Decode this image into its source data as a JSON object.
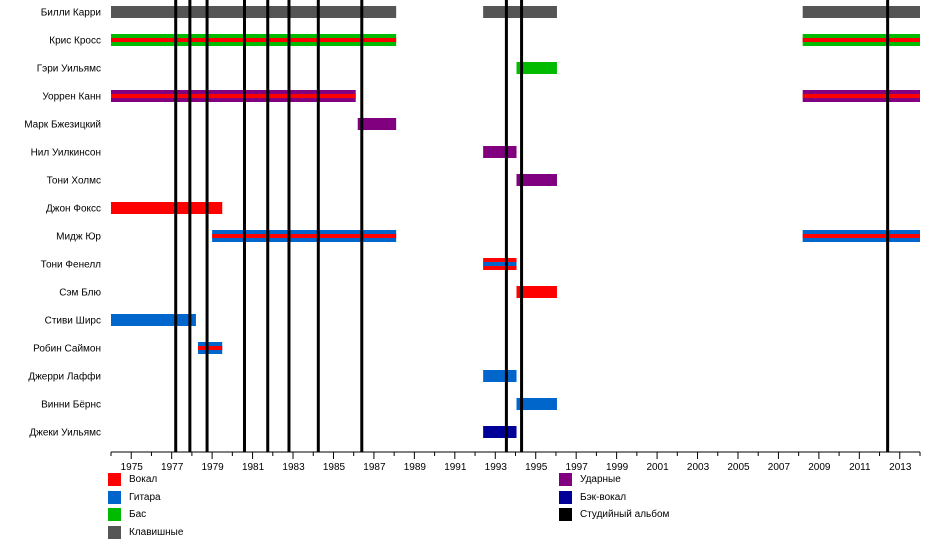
{
  "chart_data": {
    "type": "timeline",
    "x_range": [
      1974,
      2014
    ],
    "x_ticks": [
      1975,
      1977,
      1979,
      1981,
      1983,
      1985,
      1987,
      1989,
      1991,
      1993,
      1995,
      1997,
      1999,
      2001,
      2003,
      2005,
      2007,
      2009,
      2011,
      2013
    ],
    "roles": [
      {
        "key": "vocals",
        "name": "Вокал",
        "color": "#ff0000"
      },
      {
        "key": "guitar",
        "name": "Гитара",
        "color": "#0066cc"
      },
      {
        "key": "bass",
        "name": "Бас",
        "color": "#00bb00"
      },
      {
        "key": "keyboards",
        "name": "Клавишные",
        "color": "#555555"
      },
      {
        "key": "drums",
        "name": "Ударные",
        "color": "#800080"
      },
      {
        "key": "backing",
        "name": "Бэк-вокал",
        "color": "#000099"
      },
      {
        "key": "album",
        "name": "Студийный альбом",
        "color": "#000000"
      }
    ],
    "members": [
      {
        "name": "Билли Карри",
        "periods": [
          {
            "start": 1974,
            "end": 1988.1,
            "roles": [
              "keyboards"
            ]
          },
          {
            "start": 1992.4,
            "end": 1996.05,
            "roles": [
              "keyboards"
            ]
          },
          {
            "start": 2008.2,
            "end": 2014,
            "roles": [
              "keyboards"
            ]
          }
        ]
      },
      {
        "name": "Крис Кросс",
        "periods": [
          {
            "start": 1974,
            "end": 1988.1,
            "roles": [
              "bass",
              "vocals"
            ]
          },
          {
            "start": 2008.2,
            "end": 2014,
            "roles": [
              "bass",
              "vocals"
            ]
          }
        ]
      },
      {
        "name": "Гэри Уильямс",
        "periods": [
          {
            "start": 1994.05,
            "end": 1996.05,
            "roles": [
              "bass"
            ]
          }
        ]
      },
      {
        "name": "Уоррен Канн",
        "periods": [
          {
            "start": 1974,
            "end": 1986.1,
            "roles": [
              "drums",
              "vocals"
            ]
          },
          {
            "start": 2008.2,
            "end": 2014,
            "roles": [
              "drums",
              "vocals"
            ]
          }
        ]
      },
      {
        "name": "Марк Бжезицкий",
        "periods": [
          {
            "start": 1986.2,
            "end": 1988.1,
            "roles": [
              "drums"
            ]
          }
        ]
      },
      {
        "name": "Нил Уилкинсон",
        "periods": [
          {
            "start": 1992.4,
            "end": 1994.05,
            "roles": [
              "drums"
            ]
          }
        ]
      },
      {
        "name": "Тони Холмс",
        "periods": [
          {
            "start": 1994.05,
            "end": 1996.05,
            "roles": [
              "drums"
            ]
          }
        ]
      },
      {
        "name": "Джон Фоксс",
        "periods": [
          {
            "start": 1974,
            "end": 1979.5,
            "roles": [
              "vocals"
            ]
          }
        ]
      },
      {
        "name": "Мидж Юр",
        "periods": [
          {
            "start": 1979,
            "end": 1988.1,
            "roles": [
              "guitar",
              "vocals"
            ]
          },
          {
            "start": 2008.2,
            "end": 2014,
            "roles": [
              "guitar",
              "vocals"
            ]
          }
        ]
      },
      {
        "name": "Тони Фенелл",
        "periods": [
          {
            "start": 1992.4,
            "end": 1994.05,
            "roles": [
              "vocals",
              "guitar"
            ]
          }
        ]
      },
      {
        "name": "Сэм Блю",
        "periods": [
          {
            "start": 1994.05,
            "end": 1996.05,
            "roles": [
              "vocals"
            ]
          }
        ]
      },
      {
        "name": "Стиви Ширс",
        "periods": [
          {
            "start": 1974,
            "end": 1978.2,
            "roles": [
              "guitar"
            ]
          }
        ]
      },
      {
        "name": "Робин Саймон",
        "periods": [
          {
            "start": 1978.3,
            "end": 1979.5,
            "roles": [
              "guitar",
              "vocals"
            ]
          }
        ]
      },
      {
        "name": "Джерри Лаффи",
        "periods": [
          {
            "start": 1992.4,
            "end": 1994.05,
            "roles": [
              "guitar"
            ]
          }
        ]
      },
      {
        "name": "Винни Бёрнс",
        "periods": [
          {
            "start": 1994.05,
            "end": 1996.05,
            "roles": [
              "guitar"
            ]
          }
        ]
      },
      {
        "name": "Джеки Уильямс",
        "periods": [
          {
            "start": 1992.4,
            "end": 1994.05,
            "roles": [
              "backing"
            ]
          }
        ]
      }
    ],
    "album_years": [
      1977.2,
      1977.9,
      1978.75,
      1980.6,
      1981.75,
      1982.8,
      1984.25,
      1986.4,
      1993.55,
      1994.3,
      2012.4
    ]
  },
  "legend": {
    "left": [
      "vocals",
      "guitar",
      "bass",
      "keyboards"
    ],
    "right": [
      "drums",
      "backing",
      "album"
    ]
  }
}
